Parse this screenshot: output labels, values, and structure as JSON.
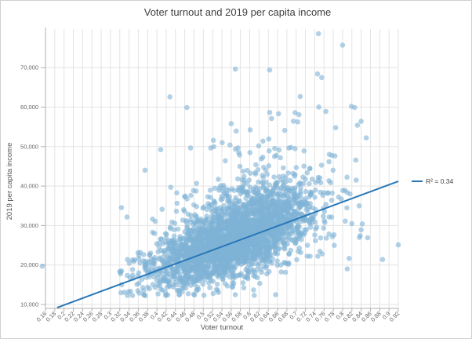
{
  "chart_data": {
    "type": "scatter",
    "title": "Voter turnout and 2019 per capita income",
    "xlabel": "Voter turnout",
    "ylabel": "2019 per capita income",
    "x_ticks": [
      0.16,
      0.18,
      0.2,
      0.22,
      0.24,
      0.26,
      0.28,
      0.3,
      0.32,
      0.34,
      0.36,
      0.38,
      0.4,
      0.42,
      0.44,
      0.46,
      0.48,
      0.5,
      0.52,
      0.54,
      0.56,
      0.58,
      0.6,
      0.62,
      0.64,
      0.66,
      0.68,
      0.7,
      0.72,
      0.74,
      0.76,
      0.78,
      0.8,
      0.82,
      0.84,
      0.86,
      0.88,
      0.9,
      0.92
    ],
    "x_tick_labels": [
      "0.16",
      "0.18",
      "0.2",
      "0.22",
      "0.24",
      "0.26",
      "0.28",
      "0.3",
      "0.32",
      "0.34",
      "0.36",
      "0.38",
      "0.4",
      "0.42",
      "0.44",
      "0.46",
      "0.48",
      "0.5",
      "0.52",
      "0.54",
      "0.56",
      "0.58",
      "0.6",
      "0.62",
      "0.64",
      "0.66",
      "0.68",
      "0.7",
      "0.72",
      "0.74",
      "0.76",
      "0.78",
      "0.8",
      "0.82",
      "0.84",
      "0.86",
      "0.88",
      "0.9",
      "0.92"
    ],
    "y_ticks": [
      10000,
      20000,
      30000,
      40000,
      50000,
      60000,
      70000
    ],
    "y_tick_labels": [
      "10,000",
      "20,000",
      "30,000",
      "40,000",
      "50,000",
      "60,000",
      "70,000"
    ],
    "xlim": [
      0.15,
      0.935
    ],
    "ylim": [
      9200,
      79700
    ],
    "grid": true,
    "legend": {
      "label": "R² = 0.34",
      "position": "right-of-plot"
    },
    "trendline": {
      "x1": 0.185,
      "y1": 9200,
      "x2": 0.92,
      "y2": 41200,
      "r_squared": 0.34
    },
    "point_style": {
      "radius": 3.3,
      "opacity": 0.6
    },
    "points_generator": {
      "note": "dense cloud of ~3000 county points approximated from pixels; deterministic seed",
      "count": 3000,
      "seed": 77,
      "x_mean": 0.565,
      "x_sd": 0.088,
      "x_min": 0.32,
      "x_max": 0.92,
      "trend_slope": 43000,
      "trend_intercept": 1700,
      "noise_sd_base": 4300,
      "noise_sd_model": "base*(0.5+x)",
      "tail_prob": 0.2,
      "tail_mean": 6000,
      "y_min": 12200,
      "y_soft_max": 64000
    },
    "notable_points": [
      [
        0.153,
        19700
      ],
      [
        0.748,
        78600
      ],
      [
        0.8,
        75700
      ],
      [
        0.569,
        69650
      ],
      [
        0.643,
        69400
      ],
      [
        0.746,
        68400
      ],
      [
        0.755,
        67500
      ],
      [
        0.826,
        59900
      ],
      [
        0.643,
        58650
      ],
      [
        0.706,
        58100
      ],
      [
        0.764,
        58900
      ],
      [
        0.694,
        56450
      ],
      [
        0.84,
        56400
      ],
      [
        0.785,
        54800
      ],
      [
        0.832,
        55400
      ],
      [
        0.851,
        52200
      ],
      [
        0.819,
        60200
      ],
      [
        0.92,
        25100
      ],
      [
        0.886,
        21400
      ],
      [
        0.854,
        26900
      ],
      [
        0.84,
        28900
      ],
      [
        0.81,
        19000
      ],
      [
        0.82,
        30500
      ]
    ]
  },
  "colors": {
    "background": "#ffffff",
    "frame_border": "#cfcfcf",
    "gridline": "#e3e3e3",
    "axis": "#b0b0b0",
    "tick_label": "#666666",
    "title": "#3f3f3f",
    "axis_title": "#555555",
    "point": "#7fb3d5",
    "trend": "#2878b8",
    "legend_text": "#444444"
  }
}
